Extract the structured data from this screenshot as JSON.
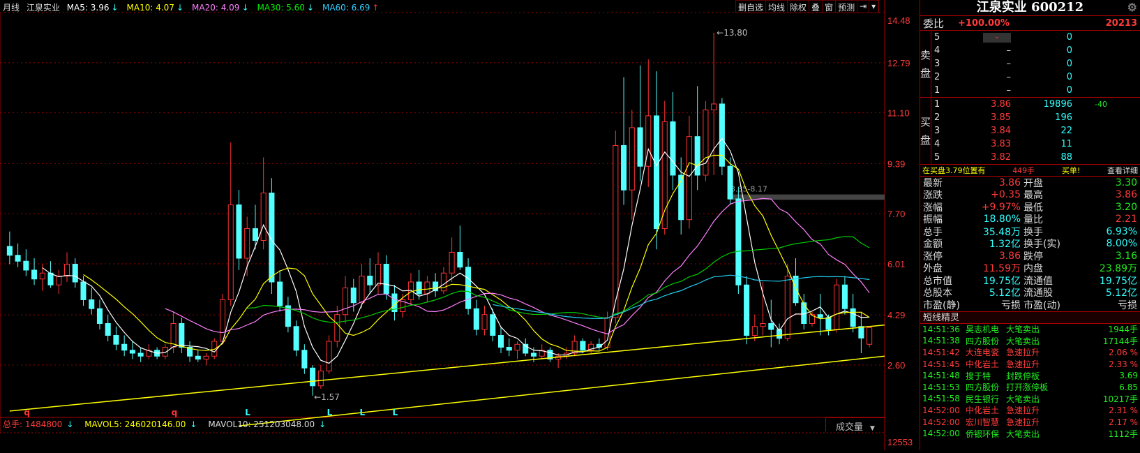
{
  "legend": {
    "period": "月线",
    "name": "江泉实业",
    "ma": [
      {
        "label": "MA5: 3.96",
        "arrow": "↓",
        "color": "#ffffff",
        "arrow_color": "#33ffff"
      },
      {
        "label": "MA10: 4.07",
        "arrow": "↓",
        "color": "#ffff00",
        "arrow_color": "#33ffff"
      },
      {
        "label": "MA20: 4.09",
        "arrow": "↓",
        "color": "#ff80ff",
        "arrow_color": "#33ffff"
      },
      {
        "label": "MA30: 5.60",
        "arrow": "↓",
        "color": "#00ee00",
        "arrow_color": "#33ffff"
      },
      {
        "label": "MA60: 6.69",
        "arrow": "↑",
        "color": "#33ccff",
        "arrow_color": "#ff3333"
      }
    ]
  },
  "toolbar": [
    "删自选",
    "均线",
    "除权",
    "叠",
    "窗",
    "预测",
    "⇥",
    "▾"
  ],
  "volume": {
    "total": "总手: 1484800",
    "mavol5": "MAVOL5: 246020146.00",
    "mavol10": "MAVOL10: 251203048.00",
    "arrow": "↓",
    "selector": "成交量",
    "axis_label": "12553"
  },
  "chart_data": {
    "type": "candlestick",
    "period": "monthly",
    "yticks": [
      "14.48",
      "12.79",
      "11.10",
      "9.39",
      "7.70",
      "6.01",
      "4.29",
      "2.60"
    ],
    "ylim": [
      2.6,
      14.48
    ],
    "high_label": "13.80",
    "low_label": "1.57",
    "band_label": "8.35-8.17",
    "band": [
      8.17,
      8.35
    ],
    "up_color": "#ff3333",
    "down_color": "#54ffff",
    "ma_periods": [
      5,
      10,
      20,
      30,
      60
    ],
    "ma_colors": [
      "#ffffff",
      "#ffff00",
      "#ff80ff",
      "#00cc00",
      "#22ccee"
    ],
    "ohlc": [
      [
        6.6,
        7.1,
        6.0,
        6.3
      ],
      [
        6.3,
        6.7,
        5.9,
        6.1
      ],
      [
        6.1,
        6.5,
        5.6,
        5.8
      ],
      [
        5.8,
        6.2,
        5.3,
        5.5
      ],
      [
        5.5,
        6.0,
        5.1,
        5.7
      ],
      [
        5.7,
        6.1,
        5.2,
        5.3
      ],
      [
        5.3,
        5.8,
        5.0,
        5.6
      ],
      [
        5.6,
        6.4,
        5.4,
        6.0
      ],
      [
        6.0,
        6.2,
        5.2,
        5.4
      ],
      [
        5.4,
        5.6,
        4.6,
        4.8
      ],
      [
        4.8,
        5.2,
        4.3,
        4.5
      ],
      [
        4.5,
        4.8,
        3.8,
        4.0
      ],
      [
        4.0,
        4.3,
        3.4,
        3.6
      ],
      [
        3.6,
        3.9,
        3.1,
        3.3
      ],
      [
        3.3,
        3.6,
        2.9,
        3.1
      ],
      [
        3.1,
        3.4,
        2.8,
        3.0
      ],
      [
        3.0,
        3.2,
        2.7,
        2.9
      ],
      [
        2.9,
        3.3,
        2.8,
        3.1
      ],
      [
        3.1,
        3.2,
        2.8,
        2.9
      ],
      [
        2.9,
        3.3,
        2.8,
        3.2
      ],
      [
        3.2,
        4.4,
        3.0,
        4.0
      ],
      [
        4.0,
        4.2,
        3.0,
        3.2
      ],
      [
        3.2,
        3.4,
        2.7,
        2.9
      ],
      [
        2.9,
        3.1,
        2.7,
        2.8
      ],
      [
        2.8,
        3.0,
        2.6,
        2.9
      ],
      [
        2.9,
        3.5,
        2.8,
        3.4
      ],
      [
        3.4,
        5.0,
        3.3,
        4.8
      ],
      [
        4.8,
        10.1,
        4.6,
        8.0
      ],
      [
        8.0,
        8.5,
        5.8,
        6.2
      ],
      [
        6.2,
        7.6,
        5.6,
        7.2
      ],
      [
        7.2,
        8.0,
        6.5,
        6.8
      ],
      [
        6.8,
        9.6,
        6.5,
        8.4
      ],
      [
        8.4,
        8.9,
        5.0,
        5.4
      ],
      [
        5.4,
        5.8,
        4.4,
        4.6
      ],
      [
        4.6,
        4.9,
        3.7,
        3.9
      ],
      [
        3.9,
        4.1,
        2.9,
        3.1
      ],
      [
        3.1,
        3.3,
        2.3,
        2.5
      ],
      [
        2.5,
        2.6,
        1.57,
        1.9
      ],
      [
        1.9,
        2.6,
        1.8,
        2.4
      ],
      [
        2.4,
        3.6,
        2.3,
        3.4
      ],
      [
        3.4,
        4.6,
        3.2,
        4.3
      ],
      [
        4.3,
        5.6,
        4.0,
        5.2
      ],
      [
        5.2,
        5.5,
        4.4,
        4.7
      ],
      [
        4.7,
        6.0,
        4.5,
        5.6
      ],
      [
        5.6,
        6.2,
        5.0,
        5.3
      ],
      [
        5.3,
        6.4,
        5.0,
        6.0
      ],
      [
        6.0,
        6.3,
        4.8,
        5.0
      ],
      [
        5.0,
        5.3,
        4.1,
        4.4
      ],
      [
        4.4,
        5.0,
        4.2,
        4.8
      ],
      [
        4.8,
        5.7,
        4.6,
        5.4
      ],
      [
        5.4,
        5.8,
        4.8,
        5.0
      ],
      [
        5.0,
        5.6,
        4.7,
        5.4
      ],
      [
        5.4,
        5.7,
        4.9,
        5.1
      ],
      [
        5.1,
        5.9,
        5.0,
        5.7
      ],
      [
        5.7,
        6.9,
        5.4,
        6.4
      ],
      [
        6.4,
        7.3,
        5.8,
        5.9
      ],
      [
        5.9,
        6.2,
        4.3,
        4.5
      ],
      [
        4.5,
        4.8,
        3.6,
        3.8
      ],
      [
        3.8,
        4.6,
        3.6,
        4.3
      ],
      [
        4.3,
        4.5,
        3.4,
        3.6
      ],
      [
        3.6,
        3.9,
        3.0,
        3.2
      ],
      [
        3.2,
        3.5,
        2.9,
        3.1
      ],
      [
        3.1,
        3.4,
        2.8,
        3.3
      ],
      [
        3.3,
        3.5,
        2.9,
        3.0
      ],
      [
        3.0,
        3.2,
        2.7,
        2.9
      ],
      [
        2.9,
        3.3,
        2.8,
        3.1
      ],
      [
        3.1,
        3.2,
        2.7,
        2.8
      ],
      [
        2.8,
        3.0,
        2.5,
        2.9
      ],
      [
        2.9,
        3.2,
        2.8,
        3.0
      ],
      [
        3.0,
        3.6,
        2.9,
        3.4
      ],
      [
        3.4,
        3.5,
        3.0,
        3.1
      ],
      [
        3.1,
        3.4,
        3.0,
        3.3
      ],
      [
        3.3,
        3.5,
        3.1,
        3.2
      ],
      [
        3.2,
        4.4,
        3.1,
        4.2
      ],
      [
        4.2,
        10.5,
        4.0,
        10.0
      ],
      [
        10.0,
        12.3,
        8.0,
        8.5
      ],
      [
        8.5,
        11.2,
        7.5,
        10.6
      ],
      [
        10.6,
        12.7,
        8.8,
        9.3
      ],
      [
        9.3,
        12.9,
        8.6,
        11.0
      ],
      [
        11.0,
        12.5,
        6.5,
        7.2
      ],
      [
        7.2,
        11.5,
        7.0,
        10.8
      ],
      [
        10.8,
        11.8,
        8.5,
        9.0
      ],
      [
        9.0,
        9.6,
        7.0,
        7.5
      ],
      [
        7.5,
        11.0,
        7.2,
        10.3
      ],
      [
        10.3,
        12.0,
        8.5,
        9.0
      ],
      [
        9.0,
        11.5,
        8.8,
        11.2
      ],
      [
        11.2,
        13.8,
        9.0,
        11.4
      ],
      [
        11.4,
        11.6,
        9.0,
        9.3
      ],
      [
        9.3,
        9.6,
        8.0,
        8.2
      ],
      [
        8.2,
        8.6,
        5.0,
        5.3
      ],
      [
        5.3,
        5.6,
        3.3,
        3.6
      ],
      [
        3.6,
        4.3,
        3.4,
        3.9
      ],
      [
        3.9,
        5.4,
        3.6,
        4.0
      ],
      [
        4.0,
        4.8,
        3.2,
        3.8
      ],
      [
        3.8,
        4.0,
        3.3,
        3.5
      ],
      [
        3.5,
        6.0,
        3.4,
        5.6
      ],
      [
        5.6,
        6.2,
        4.6,
        4.7
      ],
      [
        4.7,
        5.0,
        3.8,
        4.0
      ],
      [
        4.0,
        4.4,
        3.9,
        4.3
      ],
      [
        4.3,
        5.0,
        3.6,
        4.2
      ],
      [
        4.2,
        4.3,
        3.6,
        3.8
      ],
      [
        3.8,
        5.5,
        3.7,
        5.3
      ],
      [
        5.3,
        5.6,
        4.3,
        4.5
      ],
      [
        4.5,
        5.0,
        3.7,
        3.9
      ],
      [
        3.9,
        4.4,
        3.0,
        3.51
      ],
      [
        3.3,
        3.86,
        3.2,
        3.86
      ]
    ],
    "trendlines": [
      {
        "from": [
          0,
          1.05
        ],
        "to": [
          106,
          3.95
        ]
      },
      {
        "from": [
          28,
          0.55
        ],
        "to": [
          106,
          2.9
        ]
      }
    ],
    "signals": [
      {
        "i": 2,
        "t": "q",
        "color": "#ff3333"
      },
      {
        "i": 20,
        "t": "q",
        "color": "#ff3333"
      },
      {
        "i": 29,
        "t": "L",
        "color": "#33ffff"
      },
      {
        "i": 39,
        "t": "L",
        "color": "#33ffff"
      },
      {
        "i": 43,
        "t": "L",
        "color": "#33ffff"
      },
      {
        "i": 47,
        "t": "L",
        "color": "#33ffff"
      }
    ]
  },
  "panel": {
    "title": "江泉实业 600212",
    "weibi": {
      "label": "委比",
      "pct": "+100.00%",
      "value": "20213"
    },
    "sell_label": "卖盘",
    "buy_label": "买盘",
    "sell": [
      {
        "lv": "5",
        "p": "",
        "v": "0"
      },
      {
        "lv": "4",
        "p": "–",
        "v": "0"
      },
      {
        "lv": "3",
        "p": "–",
        "v": "0"
      },
      {
        "lv": "2",
        "p": "–",
        "v": "0"
      },
      {
        "lv": "1",
        "p": "–",
        "v": "0"
      }
    ],
    "buy": [
      {
        "lv": "1",
        "p": "3.86",
        "v": "19896",
        "d": "-40"
      },
      {
        "lv": "2",
        "p": "3.85",
        "v": "196",
        "d": ""
      },
      {
        "lv": "3",
        "p": "3.84",
        "v": "22",
        "d": ""
      },
      {
        "lv": "4",
        "p": "3.83",
        "v": "11",
        "d": ""
      },
      {
        "lv": "5",
        "p": "3.82",
        "v": "88",
        "d": ""
      }
    ],
    "tip": {
      "text": "在买盘3.79位置有",
      "qty": "449手",
      "type": "买单!",
      "link": "查看详细"
    },
    "stats": [
      [
        "最新",
        "3.86",
        "red",
        "开盘",
        "3.30",
        "gr"
      ],
      [
        "涨跌",
        "+0.35",
        "red",
        "最高",
        "3.86",
        "red"
      ],
      [
        "涨幅",
        "+9.97%",
        "red",
        "最低",
        "3.20",
        "gr"
      ],
      [
        "振幅",
        "18.80%",
        "cy",
        "量比",
        "2.21",
        "red"
      ],
      [
        "总手",
        "35.48万",
        "cy",
        "换手",
        "6.93%",
        "cy"
      ],
      [
        "金额",
        "1.32亿",
        "cy",
        "换手(实)",
        "8.00%",
        "cy"
      ],
      [
        "涨停",
        "3.86",
        "red",
        "跌停",
        "3.16",
        "gr"
      ],
      [
        "外盘",
        "11.59万",
        "red",
        "内盘",
        "23.89万",
        "gr"
      ],
      [
        "总市值",
        "19.75亿",
        "cy",
        "流通值",
        "19.75亿",
        "cy"
      ],
      [
        "总股本",
        "5.12亿",
        "cy",
        "流通股",
        "5.12亿",
        "cy"
      ],
      [
        "市盈(静)",
        "亏损",
        "wh",
        "市盈(动)",
        "亏损",
        "wh"
      ]
    ],
    "sprite_title": "短线精灵",
    "sprite": [
      [
        "14:51:36",
        "昊志机电",
        "大笔卖出",
        "1944手",
        "gr"
      ],
      [
        "14:51:38",
        "四方股份",
        "大笔卖出",
        "17144手",
        "gr"
      ],
      [
        "14:51:42",
        "大连电瓷",
        "急速拉升",
        "2.06 %",
        "red"
      ],
      [
        "14:51:45",
        "中化岩土",
        "急速拉升",
        "2.33 %",
        "red"
      ],
      [
        "14:51:48",
        "搜于特",
        "封跌停板",
        "3.69",
        "gr"
      ],
      [
        "14:51:53",
        "四方股份",
        "打开涨停板",
        "6.85",
        "gr"
      ],
      [
        "14:51:58",
        "民生银行",
        "大笔卖出",
        "10217手",
        "gr"
      ],
      [
        "14:52:00",
        "中化岩土",
        "急速拉升",
        "2.31 %",
        "red"
      ],
      [
        "14:52:00",
        "宏川智慧",
        "急速拉升",
        "2.17 %",
        "red"
      ],
      [
        "14:52:00",
        "侨银环保",
        "大笔卖出",
        "1112手",
        "gr"
      ]
    ]
  }
}
